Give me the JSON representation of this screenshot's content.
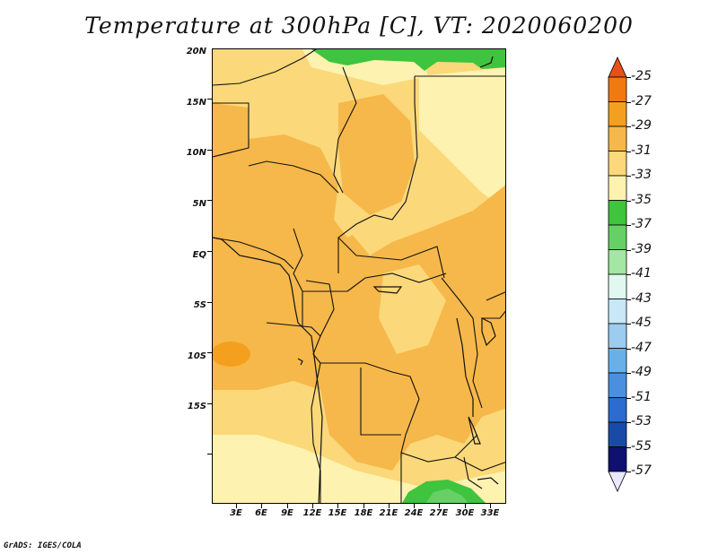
{
  "title": "Temperature at 300hPa [C], VT: 2020060200",
  "credit": "GrADS: IGES/COLA",
  "map": {
    "lat_labels": [
      "20N",
      "15N",
      "10N",
      "5N",
      "EQ",
      "5S",
      "10S",
      "15S"
    ],
    "lon_labels": [
      "3E",
      "6E",
      "9E",
      "12E",
      "15E",
      "18E",
      "21E",
      "24E",
      "27E",
      "30E",
      "33E"
    ]
  },
  "colorbar": {
    "labels": [
      "-25",
      "-27",
      "-29",
      "-31",
      "-33",
      "-35",
      "-37",
      "-39",
      "-41",
      "-43",
      "-45",
      "-47",
      "-49",
      "-51",
      "-53",
      "-55",
      "-57"
    ],
    "colors": [
      "#e8501a",
      "#f07a10",
      "#f4a01e",
      "#f6b84a",
      "#fbd87a",
      "#fef2b0",
      "#3ec43e",
      "#66d066",
      "#a4e6a4",
      "#e0f8f0",
      "#c8e8f8",
      "#9cccf0",
      "#6ab0e8",
      "#4b90e0",
      "#2c6cd0",
      "#1a4aa8",
      "#101070",
      "#e8e8ff"
    ]
  }
}
